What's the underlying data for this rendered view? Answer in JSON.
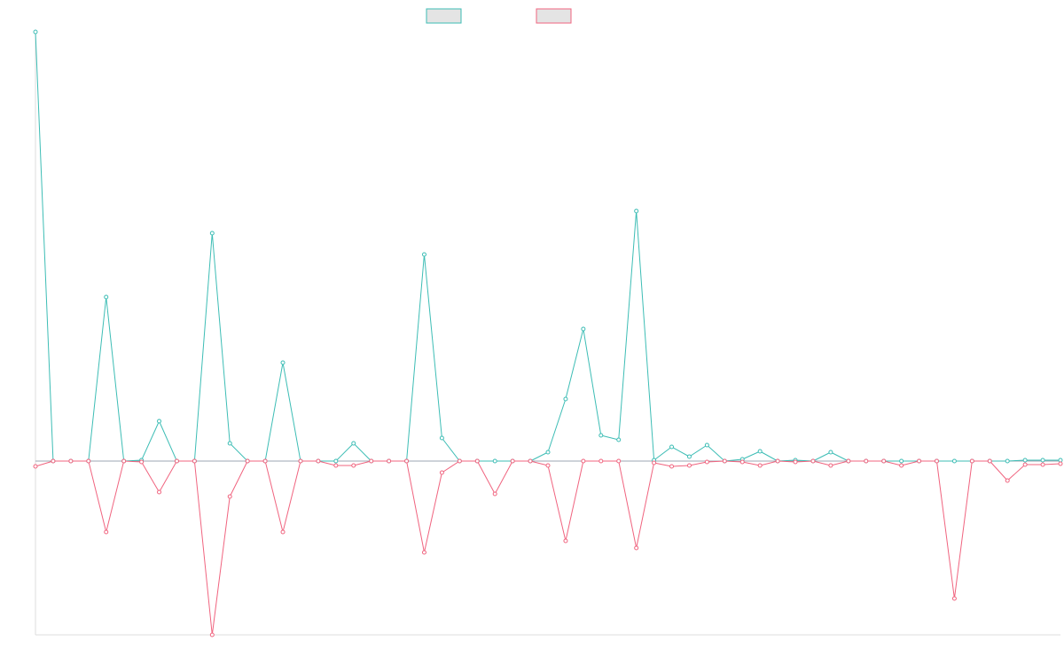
{
  "chart_data": {
    "type": "line",
    "title": "",
    "xlabel": "",
    "ylabel": "",
    "grid": false,
    "legend_placement": "top-center",
    "x_range": [
      0,
      58
    ],
    "ylim": [
      -196,
      484
    ],
    "x": [
      0,
      1,
      2,
      3,
      4,
      5,
      6,
      7,
      8,
      9,
      10,
      11,
      12,
      13,
      14,
      15,
      16,
      17,
      18,
      19,
      20,
      21,
      22,
      23,
      24,
      25,
      26,
      27,
      28,
      29,
      30,
      31,
      32,
      33,
      34,
      35,
      36,
      37,
      38,
      39,
      40,
      41,
      42,
      43,
      44,
      45,
      46,
      47,
      48,
      49,
      50,
      51,
      52,
      53,
      54,
      55,
      56,
      57,
      58
    ],
    "series": [
      {
        "color": "#3dbdb5",
        "values": [
          484,
          0,
          0,
          0,
          185,
          0,
          1,
          45,
          0,
          0,
          257,
          20,
          0,
          0,
          111,
          0,
          0,
          0,
          20,
          0,
          0,
          0,
          233,
          26,
          0,
          0,
          0,
          0,
          0,
          10,
          70,
          149,
          29,
          24,
          282,
          1,
          16,
          5,
          18,
          0,
          2,
          11,
          0,
          1,
          0,
          10,
          0,
          0,
          0,
          0,
          0,
          0,
          0,
          0,
          0,
          0,
          1,
          1,
          1
        ]
      },
      {
        "color": "#f0647f",
        "values": [
          -6,
          0,
          0,
          0,
          -80,
          0,
          -1,
          -35,
          0,
          0,
          -196,
          -40,
          0,
          0,
          -80,
          0,
          0,
          -5,
          -5,
          0,
          0,
          0,
          -103,
          -13,
          0,
          0,
          -37,
          0,
          0,
          -5,
          -90,
          0,
          0,
          0,
          -98,
          -2,
          -6,
          -5,
          -1,
          0,
          -1,
          -5,
          0,
          -1,
          0,
          -5,
          0,
          0,
          0,
          -5,
          0,
          0,
          -155,
          0,
          0,
          -22,
          -4,
          -4,
          -3
        ]
      }
    ]
  }
}
